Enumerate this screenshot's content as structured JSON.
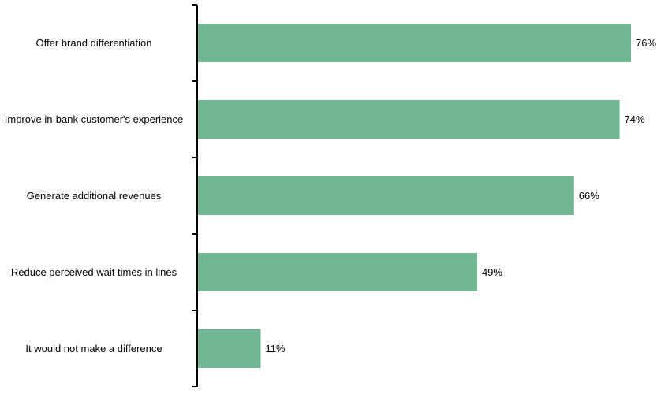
{
  "chart_data": {
    "type": "bar",
    "orientation": "horizontal",
    "categories": [
      "Offer brand differentiation",
      "Improve in-bank customer's experience",
      "Generate additional revenues",
      "Reduce perceived wait times in lines",
      "It would not make a difference"
    ],
    "values": [
      76,
      74,
      66,
      49,
      11
    ],
    "value_labels": [
      "76%",
      "74%",
      "66%",
      "49%",
      "11%"
    ],
    "unit": "%",
    "xlim": [
      0,
      80
    ],
    "grid": false,
    "legend": "none",
    "bar_color": "#73b693"
  }
}
